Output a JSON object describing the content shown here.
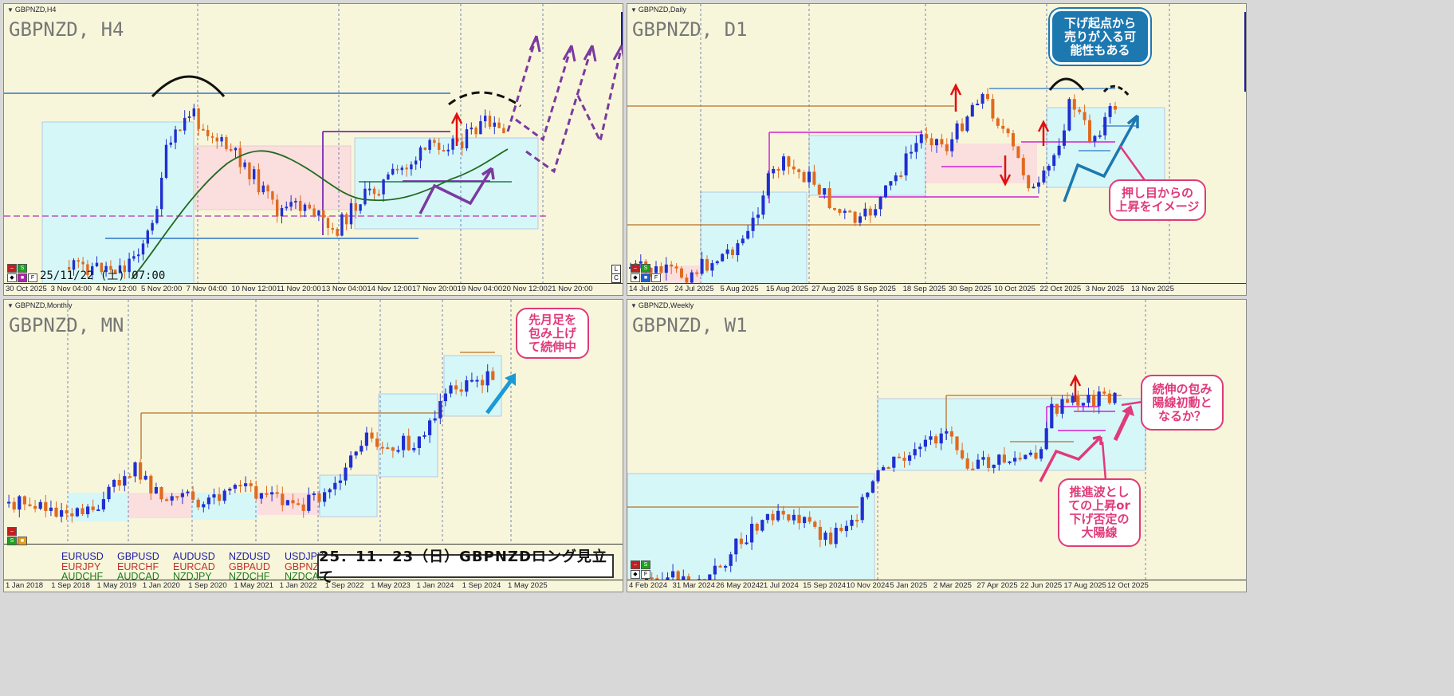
{
  "panes": [
    {
      "tag": "GBPNZD,H4",
      "title": "GBPNZD, H4",
      "axis": [
        "30 Oct 2025",
        "3 Nov 04:00",
        "4 Nov 12:00",
        "5 Nov 20:00",
        "7 Nov 04:00",
        "10 Nov 12:00",
        "11 Nov 20:00",
        "13 Nov 04:00",
        "14 Nov 12:00",
        "17 Nov 20:00",
        "19 Nov 04:00",
        "20 Nov 12:00",
        "21 Nov 20:00"
      ],
      "time_label": "25/11/22 (土) 07:00"
    },
    {
      "tag": "GBPNZD,Daily",
      "title": "GBPNZD, D1",
      "axis": [
        "14 Jul 2025",
        "24 Jul 2025",
        "5 Aug 2025",
        "15 Aug 2025",
        "27 Aug 2025",
        "8 Sep 2025",
        "18 Sep 2025",
        "30 Sep 2025",
        "10 Oct 2025",
        "22 Oct 2025",
        "3 Nov 2025",
        "13 Nov 2025"
      ]
    },
    {
      "tag": "GBPNZD,Monthly",
      "title": "GBPNZD, MN",
      "axis": [
        "1 Jan 2018",
        "1 Sep 2018",
        "1 May 2019",
        "1 Jan 2020",
        "1 Sep 2020",
        "1 May 2021",
        "1 Jan 2022",
        "1 Sep 2022",
        "1 May 2023",
        "1 Jan 2024",
        "1 Sep 2024",
        "1 May 2025"
      ]
    },
    {
      "tag": "GBPNZD,Weekly",
      "title": "GBPNZD, W1",
      "axis": [
        "4 Feb 2024",
        "31 Mar 2024",
        "26 May 2024",
        "21 Jul 2024",
        "15 Sep 2024",
        "10 Nov 2024",
        "5 Jan 2025",
        "2 Mar 2025",
        "27 Apr 2025",
        "22 Jun 2025",
        "17 Aug 2025",
        "12 Oct 2025"
      ]
    }
  ],
  "callouts": {
    "d1_top": "下げ起点から\n売りが入る可\n能性もある",
    "d1_bottom": "押し目からの\n上昇をイメージ",
    "mn": "先月足を\n包み上げ\nて続伸中",
    "w1_top": "続伸の包み\n陽線初動と\nなるか？",
    "w1_bottom": "推進波とし\nての上昇or\n下げ否定の\n大陽線"
  },
  "symbols": [
    {
      "text": "EURUSD",
      "color": "#1a1aa0"
    },
    {
      "text": "GBPUSD",
      "color": "#1a1aa0"
    },
    {
      "text": "AUDUSD",
      "color": "#1a1aa0"
    },
    {
      "text": "NZDUSD",
      "color": "#1a1aa0"
    },
    {
      "text": "USDJPY",
      "color": "#1a1aa0"
    },
    {
      "text": "EURJPY",
      "color": "#c0302a"
    },
    {
      "text": "EURCHF",
      "color": "#c0302a"
    },
    {
      "text": "EURCAD",
      "color": "#c0302a"
    },
    {
      "text": "GBPAUD",
      "color": "#c0302a"
    },
    {
      "text": "GBPNZD",
      "color": "#c0302a"
    },
    {
      "text": "AUDCHF",
      "color": "#1f7a1f"
    },
    {
      "text": "AUDCAD",
      "color": "#1f7a1f"
    },
    {
      "text": "NZDJPY",
      "color": "#1f7a1f"
    },
    {
      "text": "NZDCHF",
      "color": "#1f7a1f"
    },
    {
      "text": "NZDCAD",
      "color": "#1f7a1f"
    }
  ],
  "banner": "25．11．23（日）GBPNZDロング見立て",
  "colors": {
    "bull": "#1f2fd0",
    "bear": "#e06a20",
    "box_blue": "#d6f7f7",
    "box_red": "#fbdede",
    "arrow_purple": "#7a3aa0",
    "arrow_blue": "#1a9ad6",
    "callout_pink": "#e03a7a"
  },
  "ctrl_icons": [
    "minus-icon",
    "s-icon",
    "cursor-icon",
    "f-icon"
  ]
}
